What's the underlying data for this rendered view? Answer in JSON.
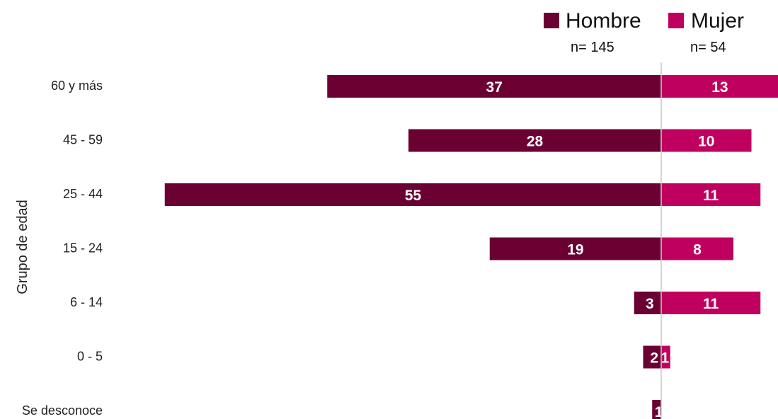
{
  "chart_data": {
    "type": "bar",
    "orientation": "horizontal",
    "layout": "diverging",
    "ylabel": "Grupo de edad",
    "categories": [
      "60 y más",
      "45 - 59",
      "25 - 44",
      "15 - 24",
      "6 - 14",
      "0 - 5",
      "Se desconoce"
    ],
    "series": [
      {
        "name": "Hombre",
        "n_label": "n= 145",
        "color": "#6b0033",
        "direction": "left",
        "values": [
          37,
          28,
          55,
          19,
          3,
          2,
          1
        ]
      },
      {
        "name": "Mujer",
        "n_label": "n= 54",
        "color": "#c0005e",
        "direction": "right",
        "values": [
          13,
          10,
          11,
          8,
          11,
          1,
          0
        ]
      }
    ],
    "data_labels": true,
    "legend_position": "top-right",
    "center_line": true,
    "grid": false
  }
}
